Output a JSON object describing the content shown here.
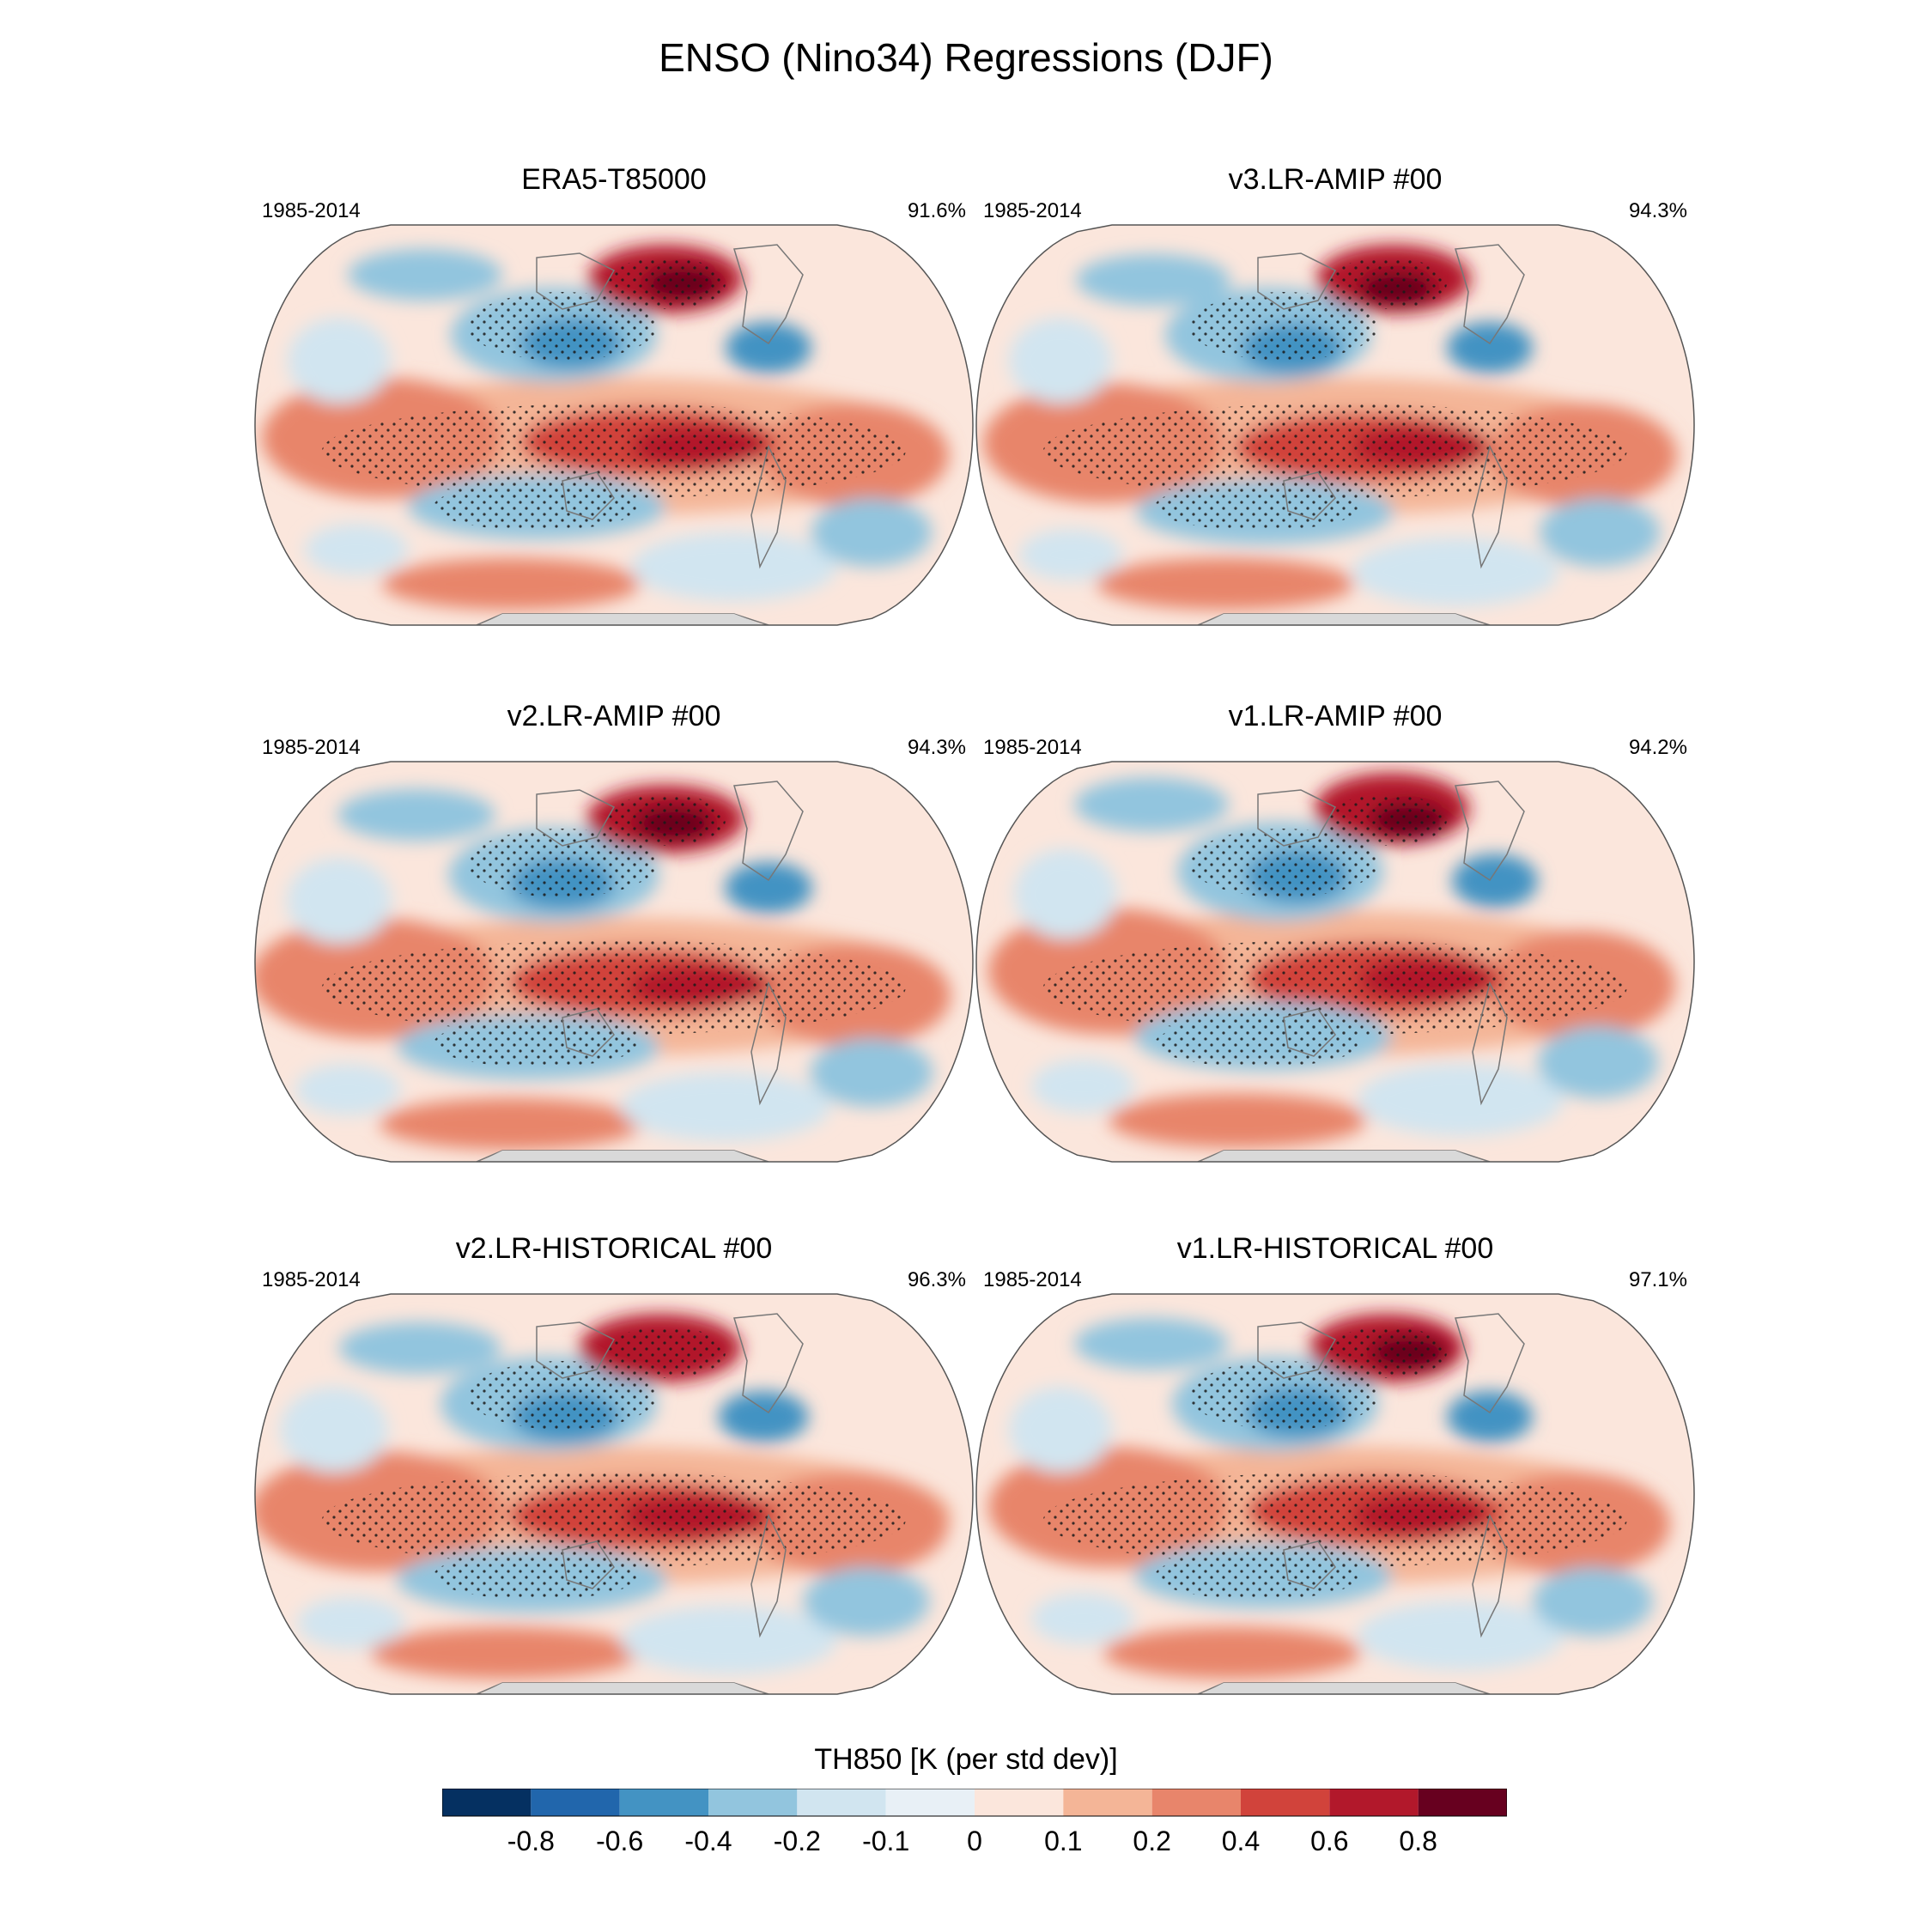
{
  "figure": {
    "title": "ENSO (Nino34) Regressions (DJF)",
    "colorbar_title": "TH850 [K (per std dev)]"
  },
  "panels": [
    {
      "title": "ERA5-T85000",
      "period": "1985-2014",
      "pct": "91.6%"
    },
    {
      "title": "v3.LR-AMIP  #00",
      "period": "1985-2014",
      "pct": "94.3%"
    },
    {
      "title": "v2.LR-AMIP  #00",
      "period": "1985-2014",
      "pct": "94.3%"
    },
    {
      "title": "v1.LR-AMIP  #00",
      "period": "1985-2014",
      "pct": "94.2%"
    },
    {
      "title": "v2.LR-HISTORICAL  #00",
      "period": "1985-2014",
      "pct": "96.3%"
    },
    {
      "title": "v1.LR-HISTORICAL  #00",
      "period": "1985-2014",
      "pct": "97.1%"
    }
  ],
  "colorbar": {
    "labels": [
      "-0.8",
      "-0.6",
      "-0.4",
      "-0.2",
      "-0.1",
      "0",
      "0.1",
      "0.2",
      "0.4",
      "0.6",
      "0.8"
    ],
    "colors": [
      "#053061",
      "#2166ac",
      "#4393c3",
      "#92c5de",
      "#d1e5f0",
      "#e8f0f6",
      "#fbe6dc",
      "#f4b597",
      "#e8856b",
      "#d1433b",
      "#b2182b",
      "#67001f"
    ]
  },
  "map_colors": {
    "ocean_base": "#fbe6dc",
    "land_mask": "#d9d9d9",
    "stipple": "#1a1a1a",
    "coast": "#777777"
  }
}
